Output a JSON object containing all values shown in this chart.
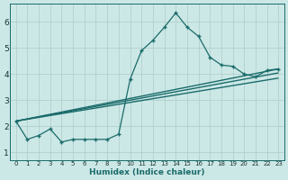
{
  "background_color": "#cce8e6",
  "grid_color": "#b0d0ce",
  "line_color": "#1a6b6b",
  "xlabel": "Humidex (Indice chaleur)",
  "xlim": [
    -0.5,
    23.5
  ],
  "ylim": [
    0.7,
    6.7
  ],
  "yticks": [
    1,
    2,
    3,
    4,
    5,
    6
  ],
  "xtick_labels": [
    "0",
    "1",
    "2",
    "3",
    "4",
    "5",
    "6",
    "7",
    "8",
    "9",
    "10",
    "11",
    "12",
    "13",
    "14",
    "15",
    "16",
    "17",
    "18",
    "19",
    "20",
    "21",
    "22",
    "23"
  ],
  "series_main": {
    "x": [
      0,
      1,
      2,
      3,
      4,
      5,
      6,
      7,
      8,
      9,
      10,
      11,
      12,
      13,
      14,
      15,
      16,
      17,
      18,
      19,
      20,
      21,
      22,
      23
    ],
    "y": [
      2.2,
      1.5,
      1.65,
      1.9,
      1.4,
      1.5,
      1.5,
      1.5,
      1.5,
      1.7,
      3.8,
      4.9,
      5.3,
      5.8,
      6.35,
      5.8,
      5.45,
      4.65,
      4.35,
      4.3,
      4.0,
      3.9,
      4.15,
      4.2
    ]
  },
  "trend_lines": [
    {
      "x": [
        0,
        23
      ],
      "y": [
        2.2,
        4.2
      ]
    },
    {
      "x": [
        0,
        23
      ],
      "y": [
        2.2,
        4.05
      ]
    },
    {
      "x": [
        0,
        23
      ],
      "y": [
        2.2,
        3.85
      ]
    }
  ]
}
